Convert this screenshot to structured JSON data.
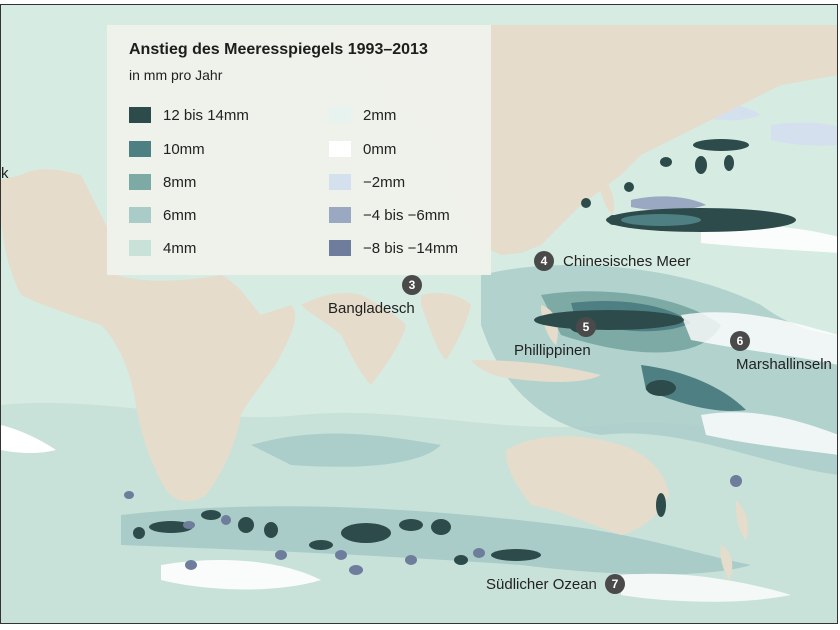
{
  "legend": {
    "title": "Anstieg des Meeresspiegels 1993–2013",
    "subtitle": "in mm pro Jahr",
    "items": [
      {
        "label": "12 bis 14mm",
        "color": "#2e4b4b"
      },
      {
        "label": "10mm",
        "color": "#4e7f82"
      },
      {
        "label": "8mm",
        "color": "#7eaaa5"
      },
      {
        "label": "6mm",
        "color": "#a9ccc8"
      },
      {
        "label": "4mm",
        "color": "#c8e2d9"
      },
      {
        "label": "2mm",
        "color": "#e6f3ee"
      },
      {
        "label": "0mm",
        "color": "#ffffff"
      },
      {
        "label": "−2mm",
        "color": "#d4e0ee"
      },
      {
        "label": "−4 bis −6mm",
        "color": "#9aa9c1"
      },
      {
        "label": "−8 bis −14mm",
        "color": "#6e7d9c"
      }
    ]
  },
  "markers": [
    {
      "number": "3",
      "label": "Bangladesch"
    },
    {
      "number": "4",
      "label": "Chinesisches Meer"
    },
    {
      "number": "5",
      "label": "Phillippinen"
    },
    {
      "number": "6",
      "label": "Marshallinseln"
    },
    {
      "number": "7",
      "label": "Südlicher Ozean"
    }
  ],
  "edge_label": "k",
  "colors": {
    "land": "#e6dccb",
    "ocean": "#d6ebe2"
  }
}
